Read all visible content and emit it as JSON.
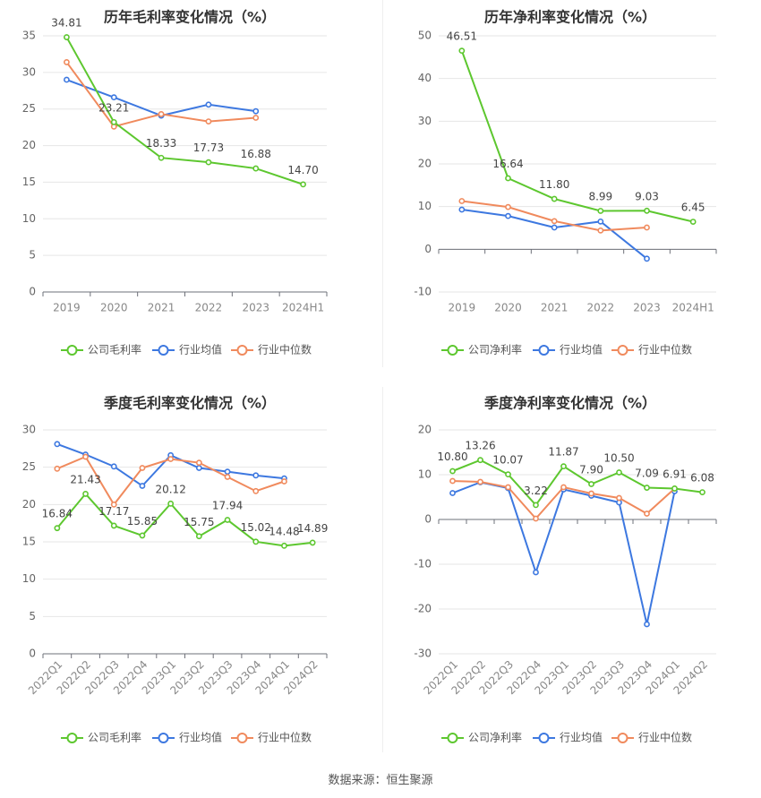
{
  "source_label": "数据来源：恒生聚源",
  "colors": {
    "company": "#5dc72f",
    "industry_avg": "#3d78e0",
    "industry_median": "#f08a5d"
  },
  "chart_data": [
    {
      "type": "line",
      "title": "历年毛利率变化情况（%）",
      "categories": [
        "2019",
        "2020",
        "2021",
        "2022",
        "2023",
        "2024H1"
      ],
      "ylim": [
        0,
        35
      ],
      "yticks": [
        0,
        5,
        10,
        15,
        20,
        25,
        30,
        35
      ],
      "grid": true,
      "legend_position": "bottom",
      "series": [
        {
          "name": "公司毛利率",
          "color": "#5dc72f",
          "labeled": true,
          "values": [
            34.81,
            23.21,
            18.33,
            17.73,
            16.88,
            14.7
          ],
          "labels": [
            "34.81",
            "23.21",
            "18.33",
            "17.73",
            "16.88",
            "14.70"
          ]
        },
        {
          "name": "行业均值",
          "color": "#3d78e0",
          "labeled": false,
          "values": [
            29.0,
            26.6,
            24.1,
            25.6,
            24.7,
            null
          ]
        },
        {
          "name": "行业中位数",
          "color": "#f08a5d",
          "labeled": false,
          "values": [
            31.4,
            22.6,
            24.3,
            23.3,
            23.8,
            null
          ]
        }
      ]
    },
    {
      "type": "line",
      "title": "历年净利率变化情况（%）",
      "categories": [
        "2019",
        "2020",
        "2021",
        "2022",
        "2023",
        "2024H1"
      ],
      "ylim": [
        -10,
        50
      ],
      "yticks": [
        -10,
        0,
        10,
        20,
        30,
        40,
        50
      ],
      "grid": true,
      "legend_position": "bottom",
      "series": [
        {
          "name": "公司净利率",
          "color": "#5dc72f",
          "labeled": true,
          "values": [
            46.51,
            16.64,
            11.8,
            8.99,
            9.03,
            6.45
          ],
          "labels": [
            "46.51",
            "16.64",
            "11.80",
            "8.99",
            "9.03",
            "6.45"
          ]
        },
        {
          "name": "行业均值",
          "color": "#3d78e0",
          "labeled": false,
          "values": [
            9.3,
            7.8,
            5.1,
            6.5,
            -2.2,
            null
          ]
        },
        {
          "name": "行业中位数",
          "color": "#f08a5d",
          "labeled": false,
          "values": [
            11.3,
            9.9,
            6.6,
            4.4,
            5.1,
            null
          ]
        }
      ]
    },
    {
      "type": "line",
      "title": "季度毛利率变化情况（%）",
      "categories": [
        "2022Q1",
        "2022Q2",
        "2022Q3",
        "2022Q4",
        "2023Q1",
        "2023Q2",
        "2023Q3",
        "2023Q4",
        "2024Q1",
        "2024Q2"
      ],
      "ylim": [
        0,
        30
      ],
      "yticks": [
        0,
        5,
        10,
        15,
        20,
        25,
        30
      ],
      "grid": true,
      "legend_position": "bottom",
      "series": [
        {
          "name": "公司毛利率",
          "color": "#5dc72f",
          "labeled": true,
          "values": [
            16.84,
            21.43,
            17.17,
            15.85,
            20.12,
            15.75,
            17.94,
            15.02,
            14.48,
            14.89
          ],
          "labels": [
            "16.84",
            "21.43",
            "17.17",
            "15.85",
            "20.12",
            "15.75",
            "17.94",
            "15.02",
            "14.48",
            "14.89"
          ]
        },
        {
          "name": "行业均值",
          "color": "#3d78e0",
          "labeled": false,
          "values": [
            28.1,
            26.7,
            25.1,
            22.5,
            26.6,
            24.9,
            24.4,
            23.9,
            23.5,
            null
          ]
        },
        {
          "name": "行业中位数",
          "color": "#f08a5d",
          "labeled": false,
          "values": [
            24.8,
            26.4,
            20.0,
            24.9,
            26.1,
            25.6,
            23.7,
            21.8,
            23.1,
            null
          ]
        }
      ]
    },
    {
      "type": "line",
      "title": "季度净利率变化情况（%）",
      "categories": [
        "2022Q1",
        "2022Q2",
        "2022Q3",
        "2022Q4",
        "2023Q1",
        "2023Q2",
        "2023Q3",
        "2023Q4",
        "2024Q1",
        "2024Q2"
      ],
      "ylim": [
        -30,
        20
      ],
      "yticks": [
        -30,
        -20,
        -10,
        0,
        10,
        20
      ],
      "grid": true,
      "legend_position": "bottom",
      "series": [
        {
          "name": "公司净利率",
          "color": "#5dc72f",
          "labeled": true,
          "values": [
            10.8,
            13.26,
            10.07,
            3.22,
            11.87,
            7.9,
            10.5,
            7.09,
            6.91,
            6.08
          ],
          "labels": [
            "10.80",
            "13.26",
            "10.07",
            "3.22",
            "11.87",
            "7.90",
            "10.50",
            "7.09",
            "6.91",
            "6.08"
          ]
        },
        {
          "name": "行业均值",
          "color": "#3d78e0",
          "labeled": false,
          "values": [
            5.9,
            8.3,
            7.0,
            -11.8,
            6.7,
            5.3,
            3.8,
            -23.4,
            6.3,
            null
          ]
        },
        {
          "name": "行业中位数",
          "color": "#f08a5d",
          "labeled": false,
          "values": [
            8.6,
            8.4,
            7.2,
            0.2,
            7.2,
            5.8,
            4.8,
            1.3,
            6.9,
            null
          ]
        }
      ]
    }
  ]
}
